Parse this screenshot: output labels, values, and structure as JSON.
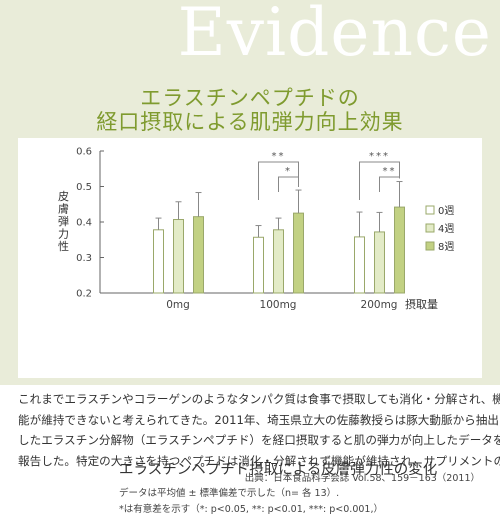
{
  "hero": {
    "word": "Evidence",
    "title_line1": "エラスチンペプチドの",
    "title_line2": "経口摂取による肌弾力向上効果"
  },
  "chart_data": {
    "type": "bar",
    "ylabel": "皮膚弾力性",
    "xlabel": "摂取量",
    "categories": [
      "0mg",
      "100mg",
      "200mg"
    ],
    "ylim": [
      0.2,
      0.6
    ],
    "yticks": [
      "0.2",
      "0.3",
      "0.4",
      "0.5",
      "0.6"
    ],
    "series": [
      {
        "name": "0週",
        "color": "#ffffff",
        "values": [
          0.378,
          0.357,
          0.358
        ],
        "errors": [
          0.033,
          0.033,
          0.07
        ]
      },
      {
        "name": "4週",
        "color": "#e3ebc7",
        "values": [
          0.407,
          0.378,
          0.372
        ],
        "errors": [
          0.05,
          0.033,
          0.055
        ]
      },
      {
        "name": "8週",
        "color": "#c2d183",
        "values": [
          0.415,
          0.425,
          0.442
        ],
        "errors": [
          0.068,
          0.065,
          0.072
        ]
      }
    ],
    "significance": [
      {
        "group": "100mg",
        "label": "**"
      },
      {
        "group": "100mg",
        "label": "*"
      },
      {
        "group": "200mg",
        "label": "***"
      },
      {
        "group": "200mg",
        "label": "**"
      }
    ],
    "legend_position": "right",
    "grid": false
  },
  "caption": "エラスチンペプチド摂取による皮膚弾力性の変化",
  "note1": "データは平均値 ± 標準偏差で示した（n= 各 13）.",
  "note2": "*は有意差を示す（*: p<0.05, **: p<0.01, ***: p<0.001,）",
  "body_lines": [
    "これまでエラスチンやコラーゲンのようなタンパク質は食事で摂取しても消化・分解され、機",
    "能が維持できないと考えられてきた。2011年、埼玉県立大の佐藤教授らは豚大動脈から抽出",
    "したエラスチン分解物（エラスチンペプチド）を経口摂取すると肌の弾力が向上したデータを",
    "報告した。特定の大きさを持つペプチドは消化・分解されず機能が維持され、サプリメントの"
  ],
  "source": "出典：日本食品科学会誌 Vol.58、159－163（2011）"
}
